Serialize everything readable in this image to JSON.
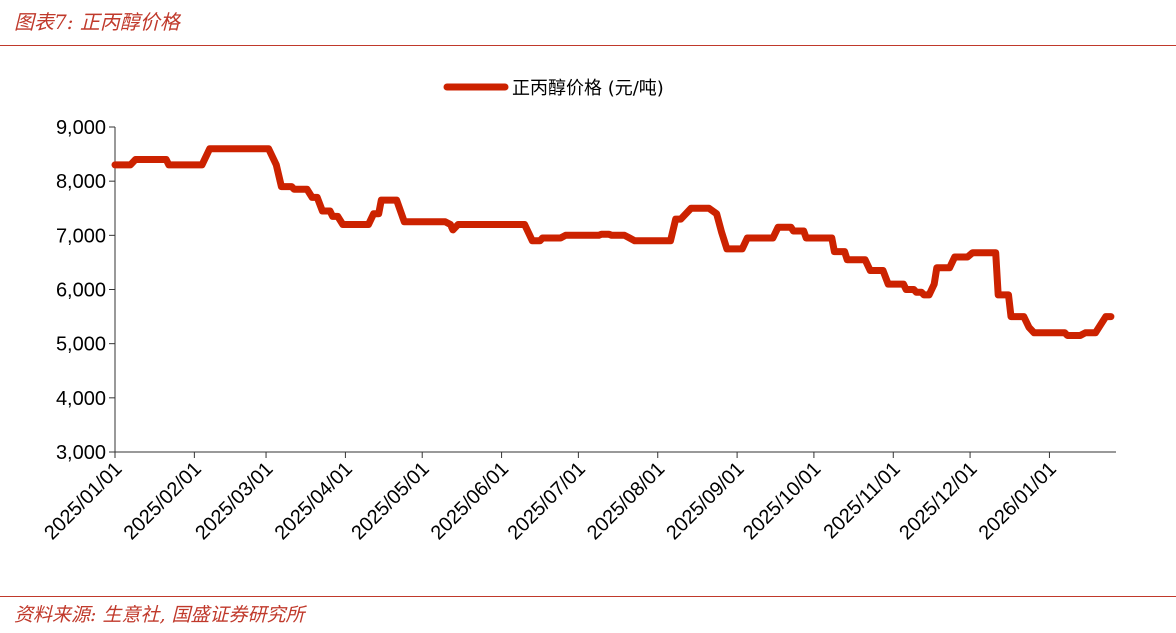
{
  "header": {
    "figure_title": "图表7:  正丙醇价格"
  },
  "footer": {
    "source": "资料来源:  生意社,  国盛证券研究所"
  },
  "colors": {
    "accent": "#c0392b",
    "series": "#cc2200",
    "axis": "#333333"
  },
  "chart_data": {
    "type": "line",
    "title": "",
    "xlabel": "",
    "ylabel": "",
    "ylim": [
      3000,
      9000
    ],
    "yticks": [
      3000,
      4000,
      5000,
      6000,
      7000,
      8000,
      9000
    ],
    "ytick_labels": [
      "3,000",
      "4,000",
      "5,000",
      "6,000",
      "7,000",
      "8,000",
      "9,000"
    ],
    "xlim": [
      "2025-01-01",
      "2026-01-27"
    ],
    "xticks": [
      "2025-01-01",
      "2025-02-01",
      "2025-03-01",
      "2025-04-01",
      "2025-05-01",
      "2025-06-01",
      "2025-07-01",
      "2025-08-01",
      "2025-09-01",
      "2025-10-01",
      "2025-11-01",
      "2025-12-01",
      "2026-01-01"
    ],
    "xtick_labels": [
      "2025/01/01",
      "2025/02/01",
      "2025/03/01",
      "2025/04/01",
      "2025/05/01",
      "2025/06/01",
      "2025/07/01",
      "2025/08/01",
      "2025/09/01",
      "2025/10/01",
      "2025/11/01",
      "2025/12/01",
      "2026/01/01"
    ],
    "grid": false,
    "legend": "top-center",
    "series": [
      {
        "name": "正丙醇价格 (元/吨)",
        "points": [
          [
            "2025-01-01",
            8300
          ],
          [
            "2025-01-07",
            8300
          ],
          [
            "2025-01-09",
            8400
          ],
          [
            "2025-01-21",
            8400
          ],
          [
            "2025-01-22",
            8300
          ],
          [
            "2025-02-04",
            8300
          ],
          [
            "2025-02-07",
            8600
          ],
          [
            "2025-03-02",
            8600
          ],
          [
            "2025-03-05",
            8300
          ],
          [
            "2025-03-07",
            7900
          ],
          [
            "2025-03-11",
            7900
          ],
          [
            "2025-03-12",
            7850
          ],
          [
            "2025-03-17",
            7850
          ],
          [
            "2025-03-19",
            7700
          ],
          [
            "2025-03-21",
            7700
          ],
          [
            "2025-03-23",
            7450
          ],
          [
            "2025-03-26",
            7450
          ],
          [
            "2025-03-27",
            7350
          ],
          [
            "2025-03-29",
            7350
          ],
          [
            "2025-03-31",
            7200
          ],
          [
            "2025-04-10",
            7200
          ],
          [
            "2025-04-12",
            7400
          ],
          [
            "2025-04-14",
            7400
          ],
          [
            "2025-04-15",
            7650
          ],
          [
            "2025-04-21",
            7650
          ],
          [
            "2025-04-24",
            7250
          ],
          [
            "2025-05-10",
            7250
          ],
          [
            "2025-05-12",
            7200
          ],
          [
            "2025-05-13",
            7100
          ],
          [
            "2025-05-15",
            7200
          ],
          [
            "2025-06-10",
            7200
          ],
          [
            "2025-06-12",
            7000
          ],
          [
            "2025-06-13",
            6900
          ],
          [
            "2025-06-16",
            6900
          ],
          [
            "2025-06-17",
            6950
          ],
          [
            "2025-06-24",
            6950
          ],
          [
            "2025-06-26",
            7000
          ],
          [
            "2025-07-09",
            7000
          ],
          [
            "2025-07-10",
            7020
          ],
          [
            "2025-07-13",
            7020
          ],
          [
            "2025-07-14",
            7000
          ],
          [
            "2025-07-19",
            7000
          ],
          [
            "2025-07-21",
            6950
          ],
          [
            "2025-07-23",
            6900
          ],
          [
            "2025-08-06",
            6900
          ],
          [
            "2025-08-08",
            7300
          ],
          [
            "2025-08-10",
            7300
          ],
          [
            "2025-08-14",
            7500
          ],
          [
            "2025-08-21",
            7500
          ],
          [
            "2025-08-24",
            7400
          ],
          [
            "2025-08-26",
            7050
          ],
          [
            "2025-08-28",
            6750
          ],
          [
            "2025-09-03",
            6750
          ],
          [
            "2025-09-05",
            6950
          ],
          [
            "2025-09-15",
            6950
          ],
          [
            "2025-09-17",
            7150
          ],
          [
            "2025-09-22",
            7150
          ],
          [
            "2025-09-23",
            7080
          ],
          [
            "2025-09-27",
            7080
          ],
          [
            "2025-09-28",
            6950
          ],
          [
            "2025-10-08",
            6950
          ],
          [
            "2025-10-09",
            6700
          ],
          [
            "2025-10-13",
            6700
          ],
          [
            "2025-10-14",
            6550
          ],
          [
            "2025-10-21",
            6550
          ],
          [
            "2025-10-23",
            6350
          ],
          [
            "2025-10-28",
            6350
          ],
          [
            "2025-10-30",
            6100
          ],
          [
            "2025-11-05",
            6100
          ],
          [
            "2025-11-06",
            6000
          ],
          [
            "2025-11-09",
            6000
          ],
          [
            "2025-11-10",
            5950
          ],
          [
            "2025-11-12",
            5950
          ],
          [
            "2025-11-13",
            5900
          ],
          [
            "2025-11-15",
            5900
          ],
          [
            "2025-11-17",
            6100
          ],
          [
            "2025-11-18",
            6400
          ],
          [
            "2025-11-23",
            6400
          ],
          [
            "2025-11-25",
            6600
          ],
          [
            "2025-11-30",
            6600
          ],
          [
            "2025-12-02",
            6680
          ],
          [
            "2025-12-11",
            6680
          ],
          [
            "2025-12-12",
            5900
          ],
          [
            "2025-12-16",
            5900
          ],
          [
            "2025-12-17",
            5500
          ],
          [
            "2025-12-22",
            5500
          ],
          [
            "2025-12-24",
            5300
          ],
          [
            "2025-12-26",
            5200
          ],
          [
            "2026-01-07",
            5200
          ],
          [
            "2026-01-08",
            5150
          ],
          [
            "2026-01-13",
            5150
          ],
          [
            "2026-01-15",
            5200
          ],
          [
            "2026-01-19",
            5200
          ],
          [
            "2026-01-21",
            5350
          ],
          [
            "2026-01-23",
            5500
          ],
          [
            "2026-01-25",
            5500
          ]
        ]
      }
    ]
  }
}
